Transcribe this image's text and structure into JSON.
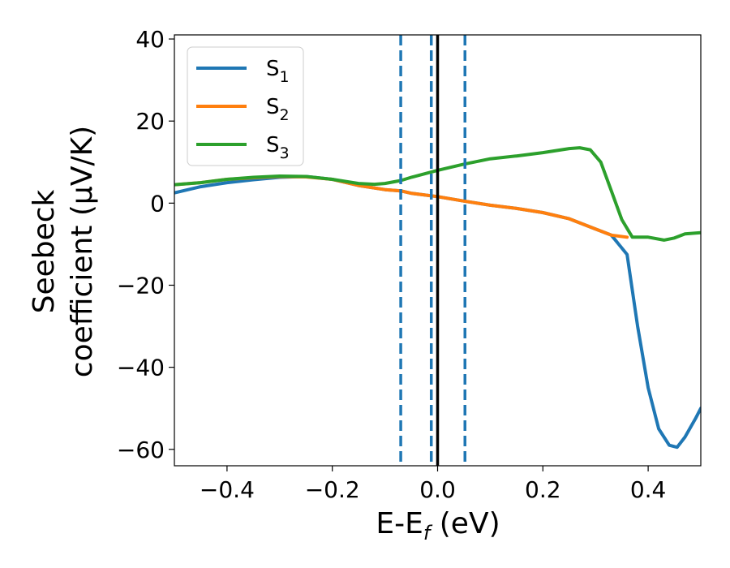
{
  "chart_data": {
    "type": "line",
    "xlabel_main": "E-E",
    "xlabel_sub": "f",
    "xlabel_unit": " (eV)",
    "ylabel_line1": "Seebeck",
    "ylabel_line2": "coefficient  (μV/K)",
    "xlim": [
      -0.5,
      0.5
    ],
    "ylim": [
      -64,
      41
    ],
    "x_ticks": [
      -0.4,
      -0.2,
      0.0,
      0.2,
      0.4
    ],
    "x_tick_labels": [
      "−0.4",
      "−0.2",
      "0.0",
      "0.2",
      "0.4"
    ],
    "y_ticks": [
      40,
      20,
      0,
      -20,
      -40,
      -60
    ],
    "y_tick_labels": [
      "40",
      "20",
      "0",
      "−20",
      "−40",
      "−60"
    ],
    "grid": false,
    "legend_position": "top-left",
    "vertical_lines": [
      {
        "x": -0.07,
        "style": "dashed",
        "color": "#1f77b4"
      },
      {
        "x": -0.012,
        "style": "dashed",
        "color": "#1f77b4"
      },
      {
        "x": 0.052,
        "style": "dashed",
        "color": "#1f77b4"
      },
      {
        "x": 0.0,
        "style": "solid",
        "color": "#000000"
      }
    ],
    "series": [
      {
        "name": "S",
        "sub": "1",
        "color": "#1f77b4",
        "x": [
          -0.5,
          -0.45,
          -0.4,
          -0.35,
          -0.3,
          -0.25,
          -0.2,
          -0.15,
          -0.1,
          -0.07,
          -0.05,
          0.0,
          0.05,
          0.1,
          0.15,
          0.2,
          0.25,
          0.3,
          0.33,
          0.36,
          0.38,
          0.4,
          0.42,
          0.44,
          0.455,
          0.47,
          0.49,
          0.5
        ],
        "values": [
          2.5,
          4.0,
          5.0,
          5.7,
          6.3,
          6.5,
          5.8,
          4.3,
          3.3,
          3.0,
          2.4,
          1.6,
          0.5,
          -0.5,
          -1.3,
          -2.3,
          -3.8,
          -6.3,
          -7.8,
          -12.5,
          -30.0,
          -45.0,
          -55.0,
          -59.0,
          -59.5,
          -57.0,
          -52.5,
          -50.0
        ]
      },
      {
        "name": "S",
        "sub": "2",
        "color": "#ff7f0e",
        "x": [
          -0.5,
          -0.45,
          -0.4,
          -0.35,
          -0.3,
          -0.25,
          -0.2,
          -0.15,
          -0.1,
          -0.07,
          -0.05,
          0.0,
          0.05,
          0.1,
          0.15,
          0.2,
          0.25,
          0.3,
          0.33,
          0.36
        ],
        "values": [
          4.5,
          5.0,
          5.8,
          6.2,
          6.5,
          6.4,
          5.8,
          4.3,
          3.3,
          3.0,
          2.4,
          1.6,
          0.5,
          -0.5,
          -1.3,
          -2.3,
          -3.8,
          -6.3,
          -7.8,
          -8.3
        ]
      },
      {
        "name": "S",
        "sub": "3",
        "color": "#2ca02c",
        "x": [
          -0.5,
          -0.45,
          -0.4,
          -0.35,
          -0.3,
          -0.25,
          -0.2,
          -0.15,
          -0.12,
          -0.1,
          -0.07,
          -0.05,
          0.0,
          0.05,
          0.1,
          0.15,
          0.2,
          0.25,
          0.27,
          0.29,
          0.31,
          0.33,
          0.35,
          0.37,
          0.4,
          0.43,
          0.45,
          0.47,
          0.5
        ],
        "values": [
          4.5,
          5.0,
          5.8,
          6.3,
          6.6,
          6.5,
          5.8,
          4.8,
          4.6,
          4.8,
          5.5,
          6.3,
          8.0,
          9.5,
          10.8,
          11.5,
          12.3,
          13.3,
          13.5,
          13.0,
          10.0,
          3.0,
          -4.0,
          -8.3,
          -8.3,
          -9.0,
          -8.5,
          -7.5,
          -7.2
        ]
      }
    ]
  }
}
